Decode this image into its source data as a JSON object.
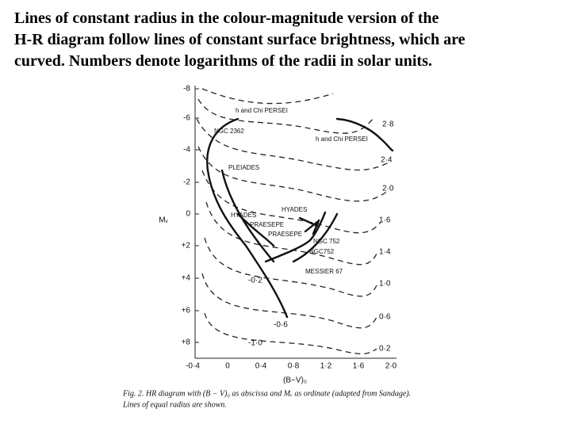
{
  "heading": [
    "Lines of constant radius in the colour-magnitude version of the",
    "H-R diagram follow lines of constant surface brightness, which are",
    "curved. Numbers denote logarithms of the radii in solar units."
  ],
  "figure": {
    "y_axis_label": "Mᵥ",
    "x_axis_label": "(B−V)₀",
    "y_tick_labels": [
      "-8",
      "-6",
      "-4",
      "-2",
      "0",
      "+2",
      "+4",
      "+6",
      "+8"
    ],
    "x_tick_labels": [
      "-0·4",
      "0",
      "0·4",
      "0·8",
      "1·2",
      "1·6",
      "2·0"
    ],
    "radius_labels": [
      "2·8",
      "2·4",
      "2·0",
      "1·6",
      "1·4",
      "1·0",
      "0·6",
      "0·2",
      "-0·2",
      "-0·6",
      "-1·0"
    ],
    "cluster_labels": [
      "h and Chi PERSEI",
      "NGC 2362",
      "h and Chi PERSEI",
      "PLEIADES",
      "HYADES",
      "HYADES",
      "PRAESEPE",
      "PRAESEPE",
      "NGC 752",
      "NGC752",
      "MESSIER 67"
    ],
    "caption": [
      "Fig. 2. HR diagram with (B − V)₀ as abscissa and Mᵥ as ordinate (adapted from Sandage).",
      "Lines of equal radius are shown."
    ]
  }
}
